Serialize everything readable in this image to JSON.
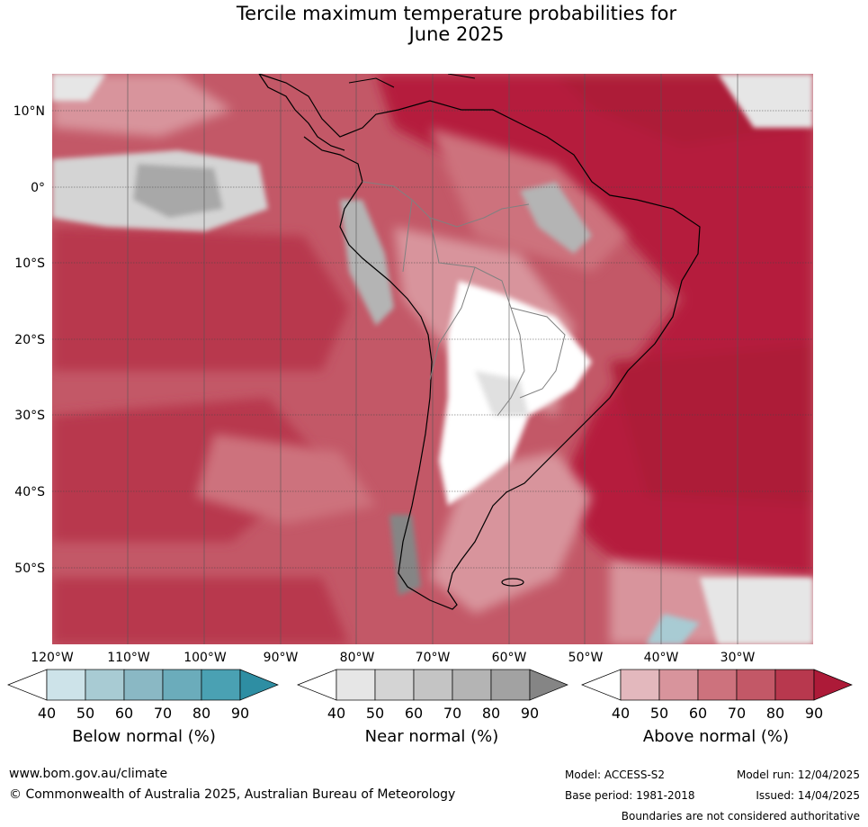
{
  "title_line1": "Tercile maximum temperature probabilities for",
  "title_line2": "June 2025",
  "map": {
    "lat_labels": [
      "10°N",
      "0°",
      "10°S",
      "20°S",
      "30°S",
      "40°S",
      "50°S"
    ],
    "lon_labels": [
      "120°W",
      "110°W",
      "100°W",
      "90°W",
      "80°W",
      "70°W",
      "60°W",
      "50°W",
      "40°W",
      "30°W"
    ]
  },
  "legends": [
    {
      "name": "below",
      "title": "Below normal (%)",
      "ticks": [
        "40",
        "50",
        "60",
        "70",
        "80",
        "90"
      ],
      "colors": [
        "#ffffff",
        "#cde3e9",
        "#a8cbd3",
        "#8ab8c4",
        "#6bacbb",
        "#4aa1b3",
        "#2e8ea3"
      ]
    },
    {
      "name": "near",
      "title": "Near normal (%)",
      "ticks": [
        "40",
        "50",
        "60",
        "70",
        "80",
        "90"
      ],
      "colors": [
        "#ffffff",
        "#e6e6e6",
        "#d4d4d4",
        "#c4c4c4",
        "#b4b4b4",
        "#a2a2a2",
        "#858585"
      ]
    },
    {
      "name": "above",
      "title": "Above normal (%)",
      "ticks": [
        "40",
        "50",
        "60",
        "70",
        "80",
        "90"
      ],
      "colors": [
        "#ffffff",
        "#e3b8bd",
        "#d8949c",
        "#cd727d",
        "#c35867",
        "#b8384e",
        "#ad1a38"
      ]
    }
  ],
  "footer": {
    "website": "www.bom.gov.au/climate",
    "copyright": "© Commonwealth of Australia 2025, Australian Bureau of Meteorology",
    "model": "Model: ACCESS-S2",
    "model_run": "Model run: 12/04/2025",
    "base_period": "Base period: 1981-2018",
    "issued": "Issued: 14/04/2025",
    "disclaimer": "Boundaries are not considered authoritative"
  }
}
